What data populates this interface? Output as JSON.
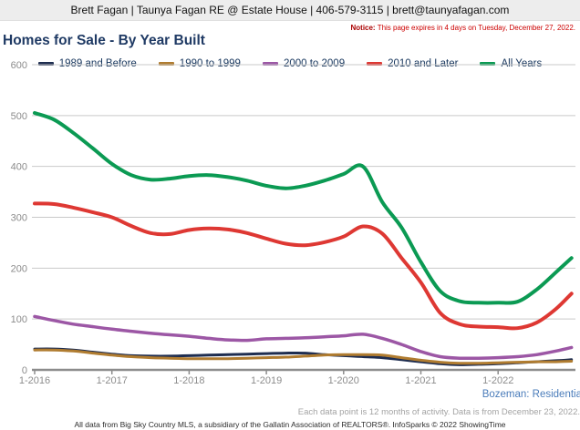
{
  "header": {
    "title": "Brett Fagan | Taunya Fagan RE @ Estate House | 406-579-3115 | brett@taunyafagan.com"
  },
  "notice": {
    "label": "Notice:",
    "text": "This page expires in 4 days on Tuesday, December 27, 2022."
  },
  "title": "Homes for Sale - By Year Built",
  "footer": {
    "market": "Bozeman: Residentia",
    "data_note": "Each data point is 12 months of activity. Data is from December 23, 2022.",
    "attribution": "All data from Big Sky Country MLS, a subsidiary of the Gallatin Association of REALTORS®. InfoSparks © 2022 ShowingTime"
  },
  "colors": {
    "grid": "#c9c9c9",
    "axis": "#8c8c8c",
    "axis_text": "#8c8c8c",
    "legend_text": "#17365d",
    "title_text": "#1f3a64",
    "notice_text": "#cc0000",
    "market_text": "#4a7cba"
  },
  "chart_data": {
    "type": "line",
    "title": "Homes for Sale - By Year Built",
    "xlabel": "",
    "ylabel": "",
    "ylim": [
      0,
      600
    ],
    "y_ticks": [
      0,
      100,
      200,
      300,
      400,
      500,
      600
    ],
    "x_start_year": 2016,
    "x_tick_labels": [
      "1-2016",
      "1-2017",
      "1-2018",
      "1-2019",
      "1-2020",
      "1-2021",
      "1-2022"
    ],
    "grid": "horizontal",
    "legend_position": "top",
    "x": [
      2016.0,
      2016.25,
      2016.5,
      2016.75,
      2017.0,
      2017.25,
      2017.5,
      2017.75,
      2018.0,
      2018.25,
      2018.5,
      2018.75,
      2019.0,
      2019.25,
      2019.5,
      2019.75,
      2020.0,
      2020.25,
      2020.5,
      2020.75,
      2021.0,
      2021.25,
      2021.5,
      2021.75,
      2022.0,
      2022.25,
      2022.5,
      2022.75,
      2022.95
    ],
    "series": [
      {
        "name": "1989 and Before",
        "color": "#1e2d50",
        "width": 3,
        "values": [
          41,
          41,
          39,
          35,
          31,
          28,
          27,
          27,
          28,
          29,
          30,
          31,
          32,
          33,
          33,
          30,
          28,
          26,
          24,
          20,
          16,
          12,
          10,
          11,
          12,
          14,
          16,
          18,
          20
        ]
      },
      {
        "name": "1990 to 1999",
        "color": "#b07c30",
        "width": 3,
        "values": [
          39,
          39,
          37,
          33,
          29,
          26,
          24,
          23,
          22,
          22,
          22,
          23,
          24,
          25,
          27,
          29,
          30,
          30,
          29,
          24,
          19,
          15,
          13,
          13,
          14,
          15,
          16,
          16,
          17
        ]
      },
      {
        "name": "2000 to 2009",
        "color": "#9c57a5",
        "width": 3.5,
        "values": [
          105,
          97,
          90,
          85,
          80,
          76,
          72,
          69,
          66,
          62,
          59,
          58,
          61,
          62,
          63,
          65,
          67,
          70,
          62,
          50,
          36,
          26,
          23,
          23,
          24,
          26,
          30,
          37,
          44
        ]
      },
      {
        "name": "2010 and Later",
        "color": "#de3833",
        "width": 4,
        "values": [
          327,
          326,
          319,
          310,
          300,
          283,
          269,
          267,
          275,
          278,
          276,
          269,
          258,
          248,
          245,
          251,
          262,
          282,
          268,
          220,
          172,
          112,
          90,
          85,
          84,
          82,
          93,
          120,
          150
        ]
      },
      {
        "name": "All Years",
        "color": "#0b9a53",
        "width": 4,
        "values": [
          505,
          492,
          466,
          436,
          405,
          383,
          374,
          376,
          381,
          383,
          379,
          372,
          362,
          357,
          362,
          372,
          385,
          400,
          330,
          280,
          212,
          155,
          135,
          132,
          132,
          134,
          158,
          192,
          220
        ]
      }
    ]
  }
}
